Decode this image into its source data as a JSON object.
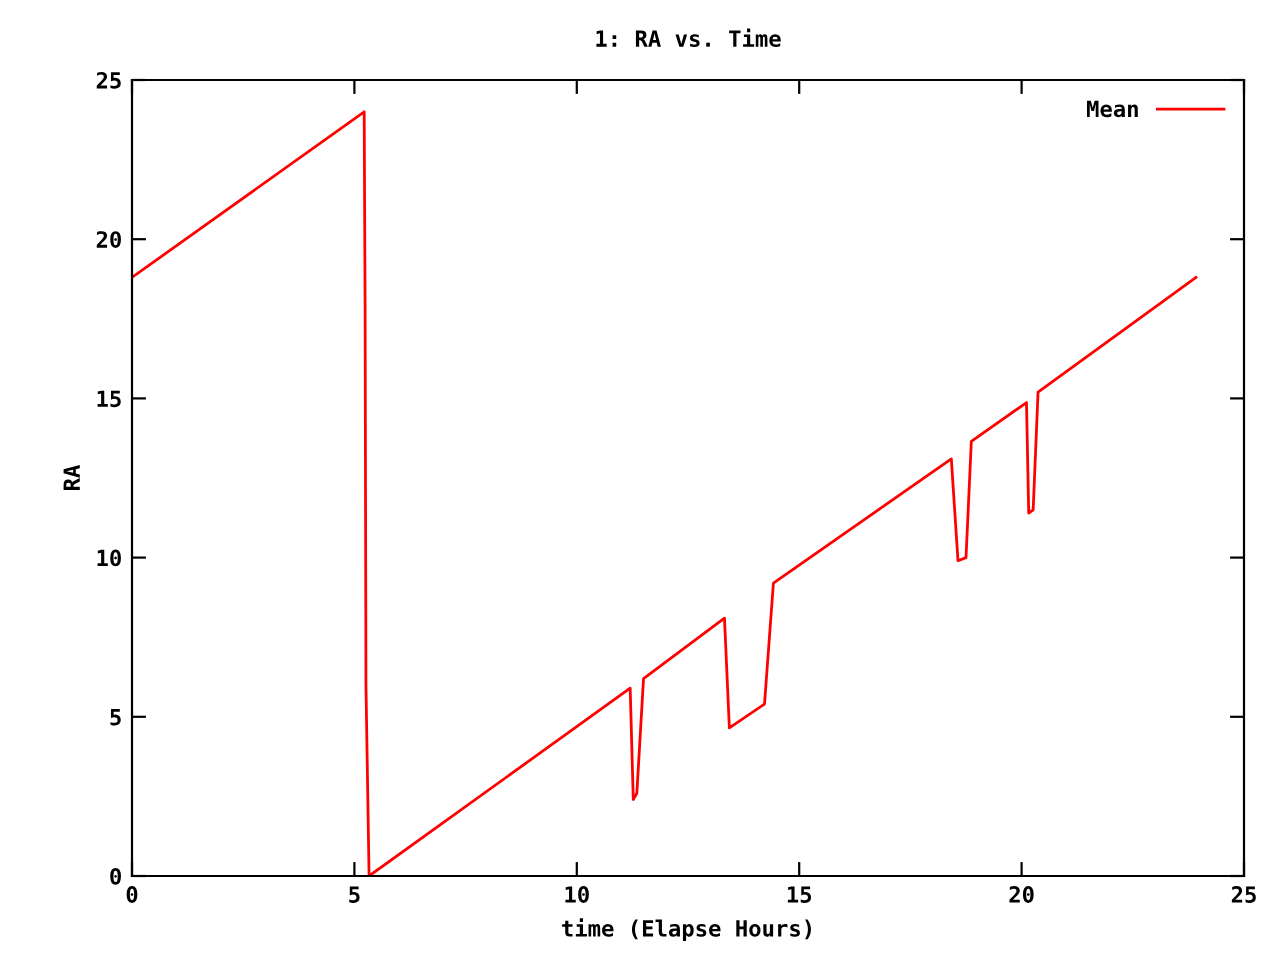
{
  "chart_data": {
    "type": "line",
    "title": "1: RA vs. Time",
    "xlabel": "time (Elapse Hours)",
    "ylabel": "RA",
    "series": [
      {
        "name": "Mean",
        "color": "#ff0000",
        "x": [
          0,
          5.22,
          5.24,
          5.26,
          5.33,
          11.2,
          11.27,
          11.35,
          11.5,
          13.32,
          13.43,
          14.22,
          14.42,
          18.42,
          18.57,
          18.75,
          18.87,
          20.11,
          20.16,
          20.26,
          20.37,
          23.92
        ],
        "values": [
          18.8,
          24.0,
          18.1,
          6.0,
          0,
          5.9,
          2.4,
          2.6,
          6.2,
          8.1,
          4.65,
          5.4,
          9.2,
          13.1,
          9.9,
          10.0,
          13.65,
          14.87,
          11.4,
          11.5,
          15.2,
          18.8
        ]
      }
    ],
    "xlim": [
      0,
      25
    ],
    "ylim": [
      0,
      25
    ],
    "xticks": [
      0,
      5,
      10,
      15,
      20,
      25
    ],
    "yticks": [
      0,
      5,
      10,
      15,
      20,
      25
    ],
    "grid": false,
    "legend": "top right",
    "marker": "none",
    "line_style": "solid"
  }
}
